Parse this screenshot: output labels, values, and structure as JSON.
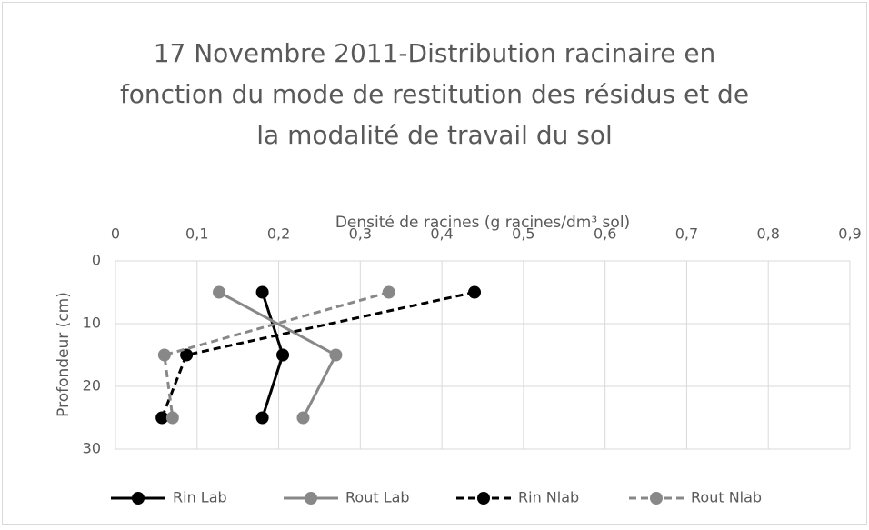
{
  "chart_data": {
    "type": "line",
    "title": [
      "17 Novembre 2011-Distribution racinaire en",
      "fonction du mode de restitution des résidus et de",
      "la modalité de travail du sol"
    ],
    "x_label": "Densité de racines (g racines/dm³ sol)",
    "y_label": "Profondeur (cm)",
    "y": [
      5,
      15,
      25
    ],
    "xlim": [
      0,
      0.9
    ],
    "xticks": [
      0,
      {
        "value": 0.1,
        "label": "0,1"
      },
      {
        "value": 0.2,
        "label": "0,2"
      },
      {
        "value": 0.3,
        "label": "0,3"
      },
      {
        "value": 0.4,
        "label": "0,4"
      },
      {
        "value": 0.5,
        "label": "0,5"
      },
      {
        "value": 0.6,
        "label": "0,6"
      },
      {
        "value": 0.7,
        "label": "0,7"
      },
      {
        "value": 0.8,
        "label": "0,8"
      },
      {
        "value": 0.9,
        "label": "0,9"
      }
    ],
    "ylim": [
      0,
      30
    ],
    "yticks": [
      0,
      10,
      20,
      30
    ],
    "y_reversed": true,
    "x_axis_top": true,
    "grid": true,
    "legend": "bottom",
    "series": [
      {
        "name": "Rin Lab",
        "color": "#000000",
        "dashed": false,
        "values": [
          0.18,
          0.205,
          0.18
        ]
      },
      {
        "name": "Rout Lab",
        "color": "#888888",
        "dashed": false,
        "values": [
          0.127,
          0.27,
          0.23
        ]
      },
      {
        "name": "Rin Nlab",
        "color": "#000000",
        "dashed": true,
        "values": [
          0.44,
          0.087,
          0.057
        ]
      },
      {
        "name": "Rout Nlab",
        "color": "#888888",
        "dashed": true,
        "values": [
          0.335,
          0.06,
          0.07
        ]
      }
    ]
  }
}
